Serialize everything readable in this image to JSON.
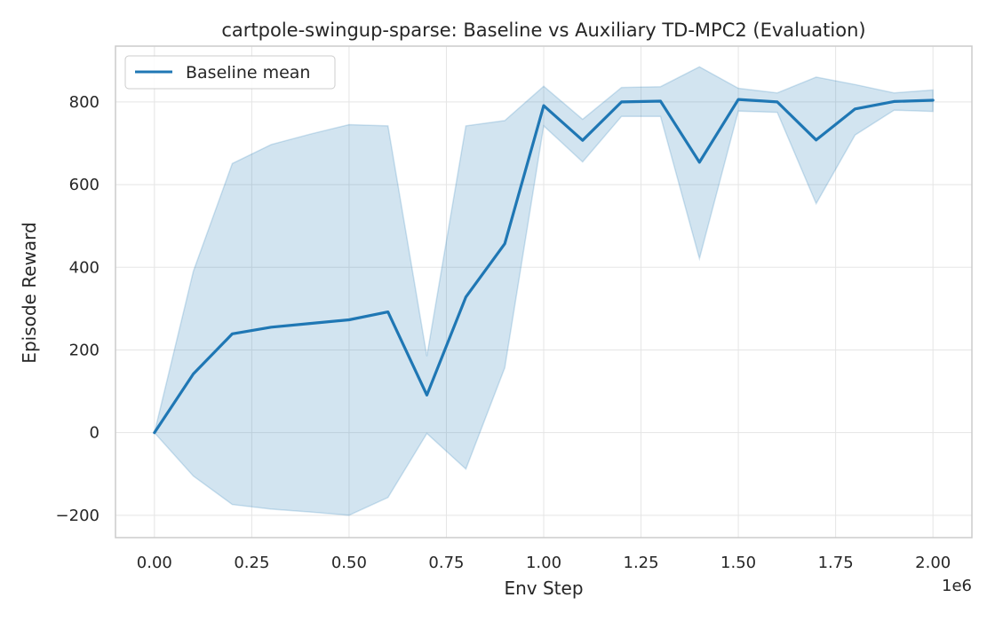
{
  "chart_data": {
    "type": "line",
    "title": "cartpole-swingup-sparse: Baseline vs Auxiliary TD-MPC2 (Evaluation)",
    "xlabel": "Env Step",
    "ylabel": "Episode Reward",
    "x_offset_label": "1e6",
    "xlim": [
      -0.1,
      2.1
    ],
    "ylim": [
      -254,
      935
    ],
    "xticks": [
      0.0,
      0.25,
      0.5,
      0.75,
      1.0,
      1.25,
      1.5,
      1.75,
      2.0
    ],
    "xtick_labels": [
      "0.00",
      "0.25",
      "0.50",
      "0.75",
      "1.00",
      "1.25",
      "1.50",
      "1.75",
      "2.00"
    ],
    "yticks": [
      -200,
      0,
      200,
      400,
      600,
      800
    ],
    "ytick_labels": [
      "−200",
      "0",
      "200",
      "400",
      "600",
      "800"
    ],
    "grid": true,
    "legend_position": "top-left",
    "colors": {
      "line": "#1f77b4",
      "band": "#1f77b4",
      "grid": "#e5e5e5",
      "frame": "#cccccc"
    },
    "series": [
      {
        "name": "Baseline mean",
        "x": [
          0.0,
          0.1,
          0.2,
          0.3,
          0.4,
          0.5,
          0.6,
          0.7,
          0.8,
          0.9,
          1.0,
          1.1,
          1.2,
          1.3,
          1.4,
          1.5,
          1.6,
          1.7,
          1.8,
          1.9,
          2.0
        ],
        "y": [
          0,
          142,
          239,
          255,
          264,
          273,
          292,
          91,
          328,
          457,
          791,
          707,
          800,
          802,
          654,
          806,
          800,
          708,
          783,
          801,
          804
        ],
        "upper": [
          0,
          390,
          651,
          697,
          722,
          745,
          742,
          185,
          742,
          755,
          838,
          758,
          835,
          837,
          885,
          833,
          822,
          860,
          842,
          822,
          829
        ],
        "lower": [
          0,
          -105,
          -174,
          -185,
          -192,
          -200,
          -157,
          -2,
          -88,
          157,
          742,
          655,
          765,
          765,
          421,
          778,
          775,
          554,
          720,
          780,
          777
        ]
      }
    ]
  }
}
